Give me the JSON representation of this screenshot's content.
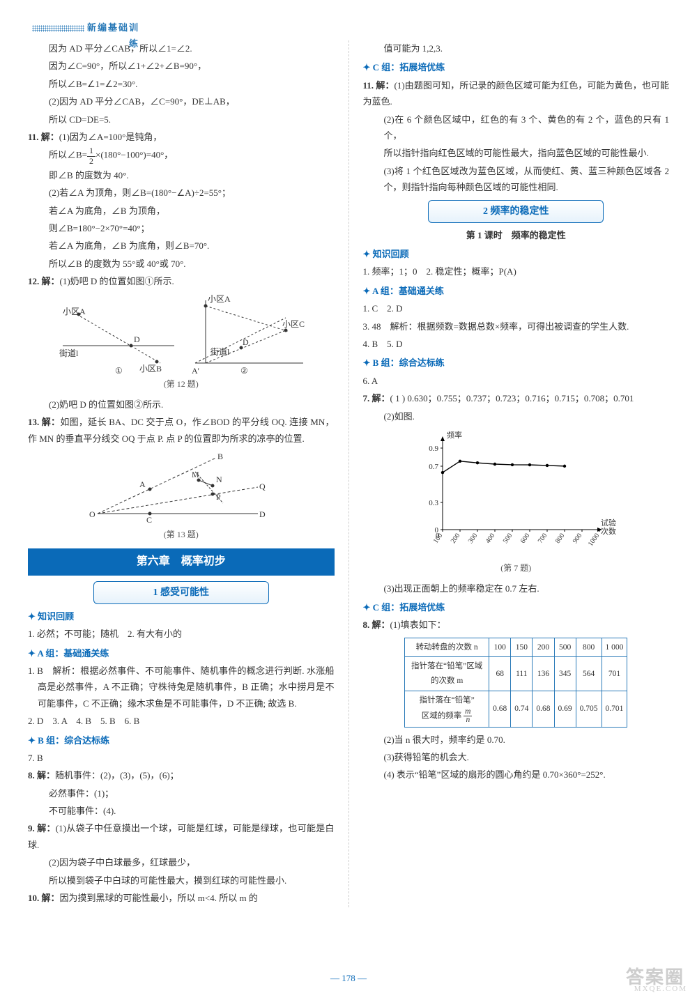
{
  "header": {
    "title": "新编基础训练"
  },
  "page_number": "178",
  "watermark": {
    "line1": "答案圈",
    "line2": "MXQE.COM"
  },
  "left": {
    "p1": "因为 AD 平分∠CAB，所以∠1=∠2.",
    "p2": "因为∠C=90°，所以∠1+∠2+∠B=90°，",
    "p3": "所以∠B=∠1=∠2=30°.",
    "p4": "(2)因为 AD 平分∠CAB，∠C=90°，DE⊥AB，",
    "p5": "所以 CD=DE=5.",
    "q11_label": "11. 解：",
    "q11_1": "(1)因为∠A=100°是钝角，",
    "q11_2a": "所以∠B=",
    "q11_2b": "×(180°−100°)=40°，",
    "q11_3": "即∠B 的度数为 40°.",
    "q11_4": "(2)若∠A 为顶角，则∠B=(180°−∠A)÷2=55°；",
    "q11_5": "若∠A 为底角，∠B 为顶角，",
    "q11_6": "则∠B=180°−2×70°=40°；",
    "q11_7": "若∠A 为底角，∠B 为底角，则∠B=70°.",
    "q11_8": "所以∠B 的度数为 55°或 40°或 70°.",
    "q12_label": "12. 解：",
    "q12_1": "(1)奶吧 D 的位置如图①所示.",
    "q12_2": "(2)奶吧 D 的位置如图②所示.",
    "fig12cap": "(第 12 题)",
    "svg12": {
      "labels": {
        "xiaoquA": "小区A",
        "xiaoquB": "小区B",
        "xiaoquC": "小区C",
        "street": "街道l",
        "D": "D",
        "Ap": "A'",
        "circle1": "①",
        "circle2": "②"
      }
    },
    "q13_label": "13. 解：",
    "q13_1": "如图，延长 BA、DC 交于点 O，作∠BOD 的平分线 OQ. 连接 MN，作 MN 的垂直平分线交 OQ 于点 P. 点 P 的位置即为所求的凉亭的位置.",
    "fig13cap": "(第 13 题)",
    "svg13": {
      "labels": {
        "O": "O",
        "A": "A",
        "B": "B",
        "C": "C",
        "D": "D",
        "M": "M",
        "N": "N",
        "P": "P",
        "Q": "Q"
      }
    },
    "chapter": "第六章　概率初步",
    "section1": "1 感受可能性",
    "grp_review": "知识回顾",
    "r1": "1. 必然；不可能；随机　2. 有大有小的",
    "grpA": "A 组：基础通关练",
    "a1": "1. B　解析：根据必然事件、不可能事件、随机事件的概念进行判断. 水涨船高是必然事件，A 不正确；守株待兔是随机事件，B 正确；水中捞月是不可能事件，C 不正确；缘木求鱼是不可能事件，D 不正确; 故选 B.",
    "a2": "2. D　3. A　4. B　5. B　6. B",
    "grpB": "B 组：综合达标练",
    "b7": "7. B",
    "b8_label": "8. 解：",
    "b8_1": "随机事件：(2)，(3)，(5)，(6)；",
    "b8_2": "必然事件：(1)；",
    "b8_3": "不可能事件：(4).",
    "b9_label": "9. 解：",
    "b9_1": "(1)从袋子中任意摸出一个球，可能是红球，可能是绿球，也可能是白球.",
    "b9_2": "(2)因为袋子中白球最多，红球最少，",
    "b9_3": "所以摸到袋子中白球的可能性最大，摸到红球的可能性最小.",
    "b10_label": "10. 解：",
    "b10_1": "因为摸到黑球的可能性最小，所以 m<4. 所以 m 的"
  },
  "right": {
    "p1": "值可能为 1,2,3.",
    "grpC": "C 组：拓展培优练",
    "c11_label": "11. 解：",
    "c11_1": "(1)由题图可知，所记录的颜色区域可能为红色，可能为黄色，也可能为蓝色.",
    "c11_2": "(2)在 6 个颜色区域中，红色的有 3 个、黄色的有 2 个，蓝色的只有 1 个，",
    "c11_3": "所以指针指向红色区域的可能性最大，指向蓝色区域的可能性最小.",
    "c11_4": "(3)将 1 个红色区域改为蓝色区域，从而使红、黄、蓝三种颜色区域各 2 个，则指针指向每种颜色区域的可能性相同.",
    "section2": "2 频率的稳定性",
    "subtitle2": "第 1 课时　频率的稳定性",
    "grp_review2": "知识回顾",
    "r2_1": "1. 频率；1；0　2. 稳定性；概率；P(A)",
    "grpA2": "A 组：基础通关练",
    "a2_1": "1. C　2. D",
    "a2_3": "3. 48　解析：根据频数=数据总数×频率，可得出被调查的学生人数.",
    "a2_4": "4. B　5. D",
    "grpB2": "B 组：综合达标练",
    "b2_6": "6. A",
    "b2_7_label": "7. 解：",
    "b2_7_1": "( 1 ) 0.630；0.755；0.737；0.723；0.716；0.715；0.708；0.701",
    "b2_7_2": "(2)如图.",
    "fig7cap": "(第 7 题)",
    "chart7": {
      "type": "line",
      "ylabel": "频率",
      "xlabel": "试验次数",
      "ylim": [
        0,
        1.0
      ],
      "yticks": [
        0,
        0.3,
        0.7,
        0.9
      ],
      "xticks": [
        "100",
        "200",
        "300",
        "400",
        "500",
        "600",
        "700",
        "800",
        "900",
        "1000"
      ],
      "values": [
        0.63,
        0.755,
        0.737,
        0.723,
        0.716,
        0.715,
        0.708,
        0.701
      ],
      "line_color": "#000000",
      "axis_color": "#000000",
      "background": "#ffffff"
    },
    "b2_7_3": "(3)出现正面朝上的频率稳定在 0.7 左右.",
    "grpC2": "C 组：拓展培优练",
    "c8_label": "8. 解：",
    "c8_1": "(1)填表如下：",
    "table8": {
      "headers": [
        "转动转盘的次数 n",
        "100",
        "150",
        "200",
        "500",
        "800",
        "1 000"
      ],
      "row2_label": "指针落在“铅笔”区域的次数 m",
      "row2": [
        "68",
        "111",
        "136",
        "345",
        "564",
        "701"
      ],
      "row3_label_a": "指针落在“铅笔”",
      "row3_label_b": "区域的频率 ",
      "row3": [
        "0.68",
        "0.74",
        "0.68",
        "0.69",
        "0.705",
        "0.701"
      ],
      "border_color": "#2a7ab8"
    },
    "c8_2": "(2)当 n 很大时，频率约是 0.70.",
    "c8_3": "(3)获得铅笔的机会大.",
    "c8_4": "(4) 表示“铅笔”区域的扇形的圆心角约是 0.70×360°=252°."
  }
}
